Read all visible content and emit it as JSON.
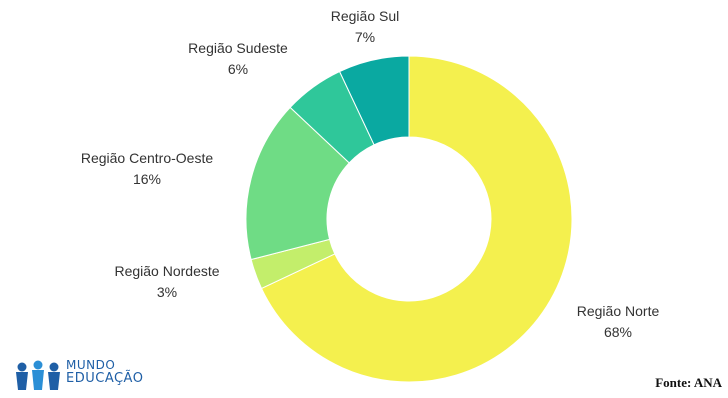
{
  "chart_data": {
    "type": "pie",
    "style": "donut",
    "slices": [
      {
        "label": "Região Norte",
        "value": 68,
        "display": "68%",
        "color": "#f4f04e"
      },
      {
        "label": "Região Nordeste",
        "value": 3,
        "display": "3%",
        "color": "#c3ee6b"
      },
      {
        "label": "Região Centro-Oeste",
        "value": 16,
        "display": "16%",
        "color": "#6fdc85"
      },
      {
        "label": "Região Sudeste",
        "value": 6,
        "display": "6%",
        "color": "#2fc79a"
      },
      {
        "label": "Região Sul",
        "value": 7,
        "display": "7%",
        "color": "#0aa9a1"
      }
    ]
  },
  "branding": {
    "line1": "MUNDO",
    "line2": "EDUCAÇÃO"
  },
  "source": "Fonte: ANA"
}
